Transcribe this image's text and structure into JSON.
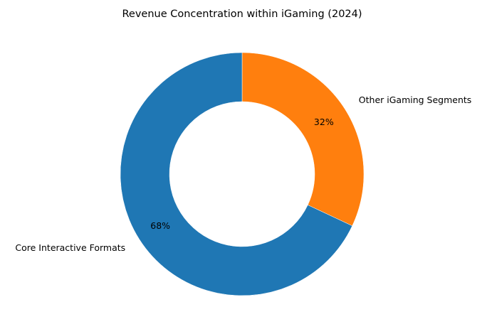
{
  "chart_data": {
    "type": "pie",
    "donut": true,
    "title": "Revenue Concentration within iGaming (2024)",
    "categories": [
      "Other iGaming Segments",
      "Core Interactive Formats"
    ],
    "values": [
      32,
      68
    ],
    "percent_labels": [
      "32%",
      "68%"
    ],
    "colors": [
      "#ff7f0e",
      "#1f77b4"
    ],
    "start": "top, clockwise",
    "legend": "none (labels beside slices)"
  }
}
